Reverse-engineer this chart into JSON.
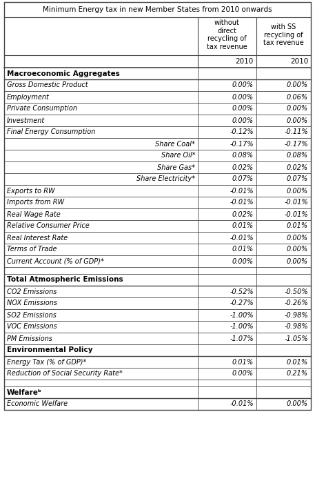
{
  "title": "Minimum Energy tax in new Member States from 2010 onwards",
  "col1_header": "without\ndirect\nrecycling of\ntax revenue",
  "col2_header": "with SS\nrecycling of\ntax revenue",
  "col1_year": "2010",
  "col2_year": "2010",
  "rows": [
    {
      "label": "Macroeconomic Aggregates",
      "col1": "",
      "col2": "",
      "style": "bold_header"
    },
    {
      "label": "Gross Domestic Product",
      "col1": "0.00%",
      "col2": "0.00%",
      "style": "italic"
    },
    {
      "label": "Employment",
      "col1": "0.00%",
      "col2": "0.06%",
      "style": "italic"
    },
    {
      "label": "Private Consumption",
      "col1": "0.00%",
      "col2": "0.00%",
      "style": "italic"
    },
    {
      "label": "Investment",
      "col1": "0.00%",
      "col2": "0.00%",
      "style": "italic"
    },
    {
      "label": "Final Energy Consumption",
      "col1": "-0.12%",
      "col2": "-0.11%",
      "style": "italic"
    },
    {
      "label": "Share Coal*",
      "col1": "-0.17%",
      "col2": "-0.17%",
      "style": "italic_right"
    },
    {
      "label": "Share Oil*",
      "col1": "0.08%",
      "col2": "0.08%",
      "style": "italic_right"
    },
    {
      "label": "Share Gas*",
      "col1": "0.02%",
      "col2": "0.02%",
      "style": "italic_right"
    },
    {
      "label": "Share Electricity*",
      "col1": "0.07%",
      "col2": "0.07%",
      "style": "italic_right"
    },
    {
      "label": "Exports to RW",
      "col1": "-0.01%",
      "col2": "0.00%",
      "style": "italic"
    },
    {
      "label": "Imports from RW",
      "col1": "-0.01%",
      "col2": "-0.01%",
      "style": "italic"
    },
    {
      "label": "Real Wage Rate",
      "col1": "0.02%",
      "col2": "-0.01%",
      "style": "italic"
    },
    {
      "label": "Relative Consumer Price",
      "col1": "0.01%",
      "col2": "0.01%",
      "style": "italic"
    },
    {
      "label": "Real Interest Rate",
      "col1": "-0.01%",
      "col2": "0.00%",
      "style": "italic"
    },
    {
      "label": "Terms of Trade",
      "col1": "0.01%",
      "col2": "0.00%",
      "style": "italic"
    },
    {
      "label": "Current Account (% of GDP)*",
      "col1": "0.00%",
      "col2": "0.00%",
      "style": "italic"
    },
    {
      "label": "",
      "col1": "",
      "col2": "",
      "style": "spacer"
    },
    {
      "label": "Total Atmospheric Emissions",
      "col1": "",
      "col2": "",
      "style": "bold_header"
    },
    {
      "label": "CO2 Emissions",
      "col1": "-0.52%",
      "col2": "-0.50%",
      "style": "italic"
    },
    {
      "label": "NOX Emissions",
      "col1": "-0.27%",
      "col2": "-0.26%",
      "style": "italic"
    },
    {
      "label": "SO2 Emissions",
      "col1": "-1.00%",
      "col2": "-0.98%",
      "style": "italic"
    },
    {
      "label": "VOC Emissions",
      "col1": "-1.00%",
      "col2": "-0.98%",
      "style": "italic"
    },
    {
      "label": "PM Emissions",
      "col1": "-1.07%",
      "col2": "-1.05%",
      "style": "italic"
    },
    {
      "label": "Environmental Policy",
      "col1": "",
      "col2": "",
      "style": "bold_header"
    },
    {
      "label": "Energy Tax (% of GDP)*",
      "col1": "0.01%",
      "col2": "0.01%",
      "style": "italic"
    },
    {
      "label": "Reduction of Social Security Rate*",
      "col1": "0.00%",
      "col2": "0.21%",
      "style": "italic"
    },
    {
      "label": "",
      "col1": "",
      "col2": "",
      "style": "spacer"
    },
    {
      "label": "Welfareᵇ",
      "col1": "",
      "col2": "",
      "style": "bold_header"
    },
    {
      "label": "Economic Welfare",
      "col1": "-0.01%",
      "col2": "0.00%",
      "style": "italic"
    }
  ],
  "bg_color": "#ffffff",
  "line_color": "#444444",
  "text_color": "#000000",
  "figwidth": 4.57,
  "figheight": 6.97,
  "dpi": 100
}
